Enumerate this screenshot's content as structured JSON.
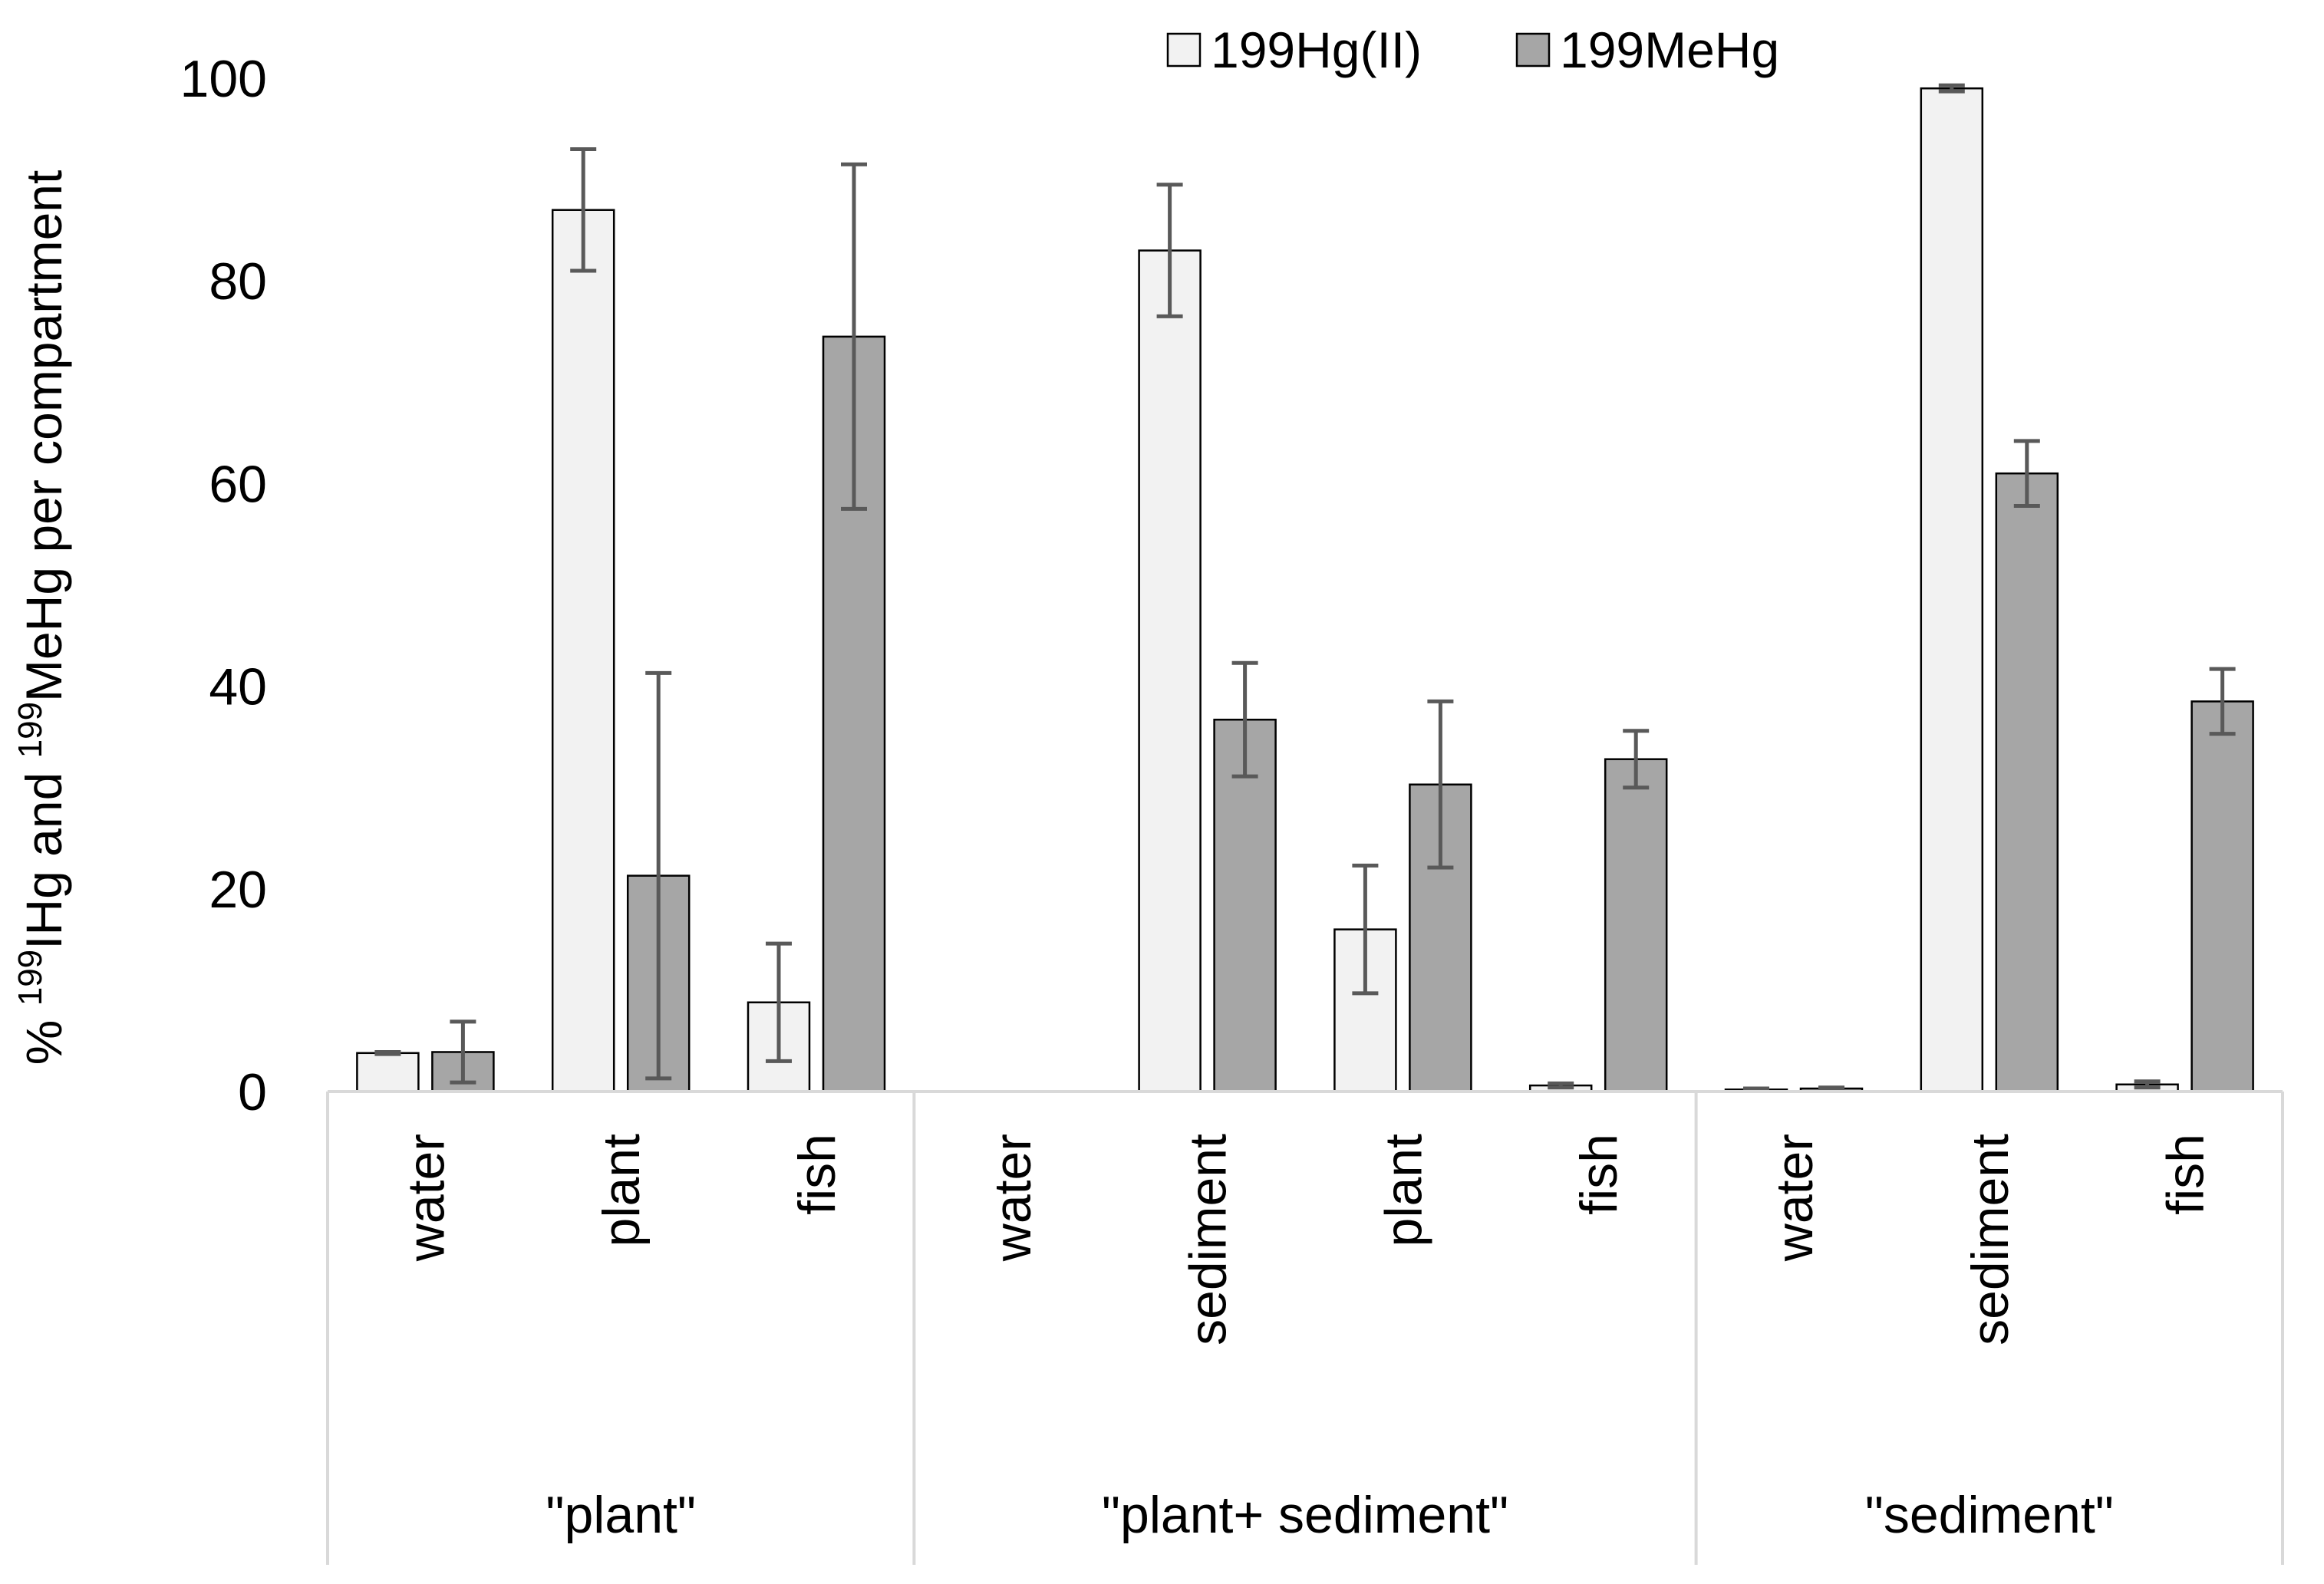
{
  "chart_data": {
    "type": "bar",
    "title": "",
    "ylabel": {
      "prefix": "% ",
      "sup1": "199",
      "mid": "IHg and ",
      "sup2": "199",
      "suffix": "MeHg per compartment"
    },
    "xlabel": "",
    "ylim": [
      0,
      100
    ],
    "yticks": [
      "0",
      "20",
      "40",
      "60",
      "80",
      "100"
    ],
    "grid": false,
    "legend_position": "top-center",
    "groups": [
      {
        "label": "\"plant\"",
        "categories": [
          "water",
          "plant",
          "fish"
        ]
      },
      {
        "label": "\"plant+ sediment\"",
        "categories": [
          "water",
          "sediment",
          "plant",
          "fish"
        ]
      },
      {
        "label": "\"sediment\"",
        "categories": [
          "water",
          "sediment",
          "fish"
        ]
      }
    ],
    "series": [
      {
        "name": "199Hg(II)",
        "color": "#f2f2f2",
        "values": [
          3.8,
          87,
          8.8,
          0,
          83,
          16,
          0.6,
          0.2,
          99,
          0.7
        ],
        "errors": [
          0.1,
          6,
          5.8,
          0,
          6.5,
          6.3,
          0.2,
          0.1,
          0.3,
          0.3
        ]
      },
      {
        "name": "199MeHg",
        "color": "#a6a6a6",
        "values": [
          3.9,
          21.3,
          74.5,
          0,
          36.7,
          30.3,
          32.8,
          0.3,
          61,
          38.5
        ],
        "errors": [
          3,
          20,
          17,
          0,
          5.6,
          8.2,
          2.8,
          0.1,
          3.2,
          3.2
        ]
      }
    ]
  }
}
